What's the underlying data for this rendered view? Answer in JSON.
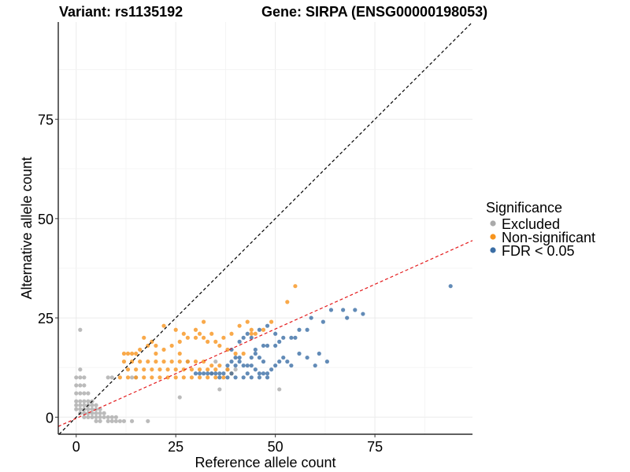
{
  "chart_data": {
    "type": "scatter",
    "title_left": "Variant: rs1135192",
    "title_right": "Gene: SIRPA (ENSG00000198053)",
    "xlabel": "Reference allele count",
    "ylabel": "Alternative allele count",
    "xlim": [
      -4.5,
      99.5
    ],
    "ylim": [
      -4.3,
      99.5
    ],
    "x_ticks": [
      0,
      25,
      50,
      75
    ],
    "y_ticks": [
      0,
      25,
      50,
      75
    ],
    "x_tick_labels": [
      "0",
      "25",
      "50",
      "75"
    ],
    "y_tick_labels": [
      "0",
      "25",
      "50",
      "75"
    ],
    "grid": true,
    "reference_lines": [
      {
        "name": "identity",
        "slope": 1,
        "intercept": 0,
        "color": "#000000",
        "style": "dashed"
      },
      {
        "name": "fit",
        "slope": 0.45,
        "intercept": -0.3,
        "color": "#e41a1c",
        "style": "dashed"
      }
    ],
    "legend": {
      "title": "Significance",
      "position": "right",
      "entries": [
        {
          "label": "Excluded",
          "color": "#aaaaaa"
        },
        {
          "label": "Non-significant",
          "color": "#f7941d"
        },
        {
          "label": "FDR < 0.05",
          "color": "#3b6ea5"
        }
      ]
    },
    "series": [
      {
        "name": "Excluded",
        "color": "#aaaaaa",
        "points": [
          [
            1,
            22
          ],
          [
            1,
            12
          ],
          [
            0,
            10
          ],
          [
            1,
            10
          ],
          [
            2,
            10
          ],
          [
            0,
            8
          ],
          [
            1,
            8
          ],
          [
            2,
            8
          ],
          [
            0,
            6
          ],
          [
            1,
            6
          ],
          [
            2,
            6
          ],
          [
            3,
            6
          ],
          [
            0,
            4
          ],
          [
            1,
            4
          ],
          [
            2,
            4
          ],
          [
            3,
            4
          ],
          [
            4,
            4
          ],
          [
            0,
            3
          ],
          [
            1,
            3
          ],
          [
            2,
            3
          ],
          [
            3,
            3
          ],
          [
            4,
            3
          ],
          [
            5,
            3
          ],
          [
            0,
            2
          ],
          [
            1,
            2
          ],
          [
            2,
            2
          ],
          [
            3,
            2
          ],
          [
            4,
            2
          ],
          [
            5,
            2
          ],
          [
            6,
            2
          ],
          [
            1,
            1
          ],
          [
            2,
            1
          ],
          [
            3,
            1
          ],
          [
            4,
            1
          ],
          [
            5,
            1
          ],
          [
            6,
            1
          ],
          [
            7,
            1
          ],
          [
            2,
            0
          ],
          [
            3,
            0
          ],
          [
            4,
            0
          ],
          [
            5,
            0
          ],
          [
            6,
            0
          ],
          [
            7,
            0
          ],
          [
            8,
            0
          ],
          [
            9,
            0
          ],
          [
            10,
            0
          ],
          [
            5,
            -1
          ],
          [
            6,
            -1
          ],
          [
            8,
            -1
          ],
          [
            9,
            -1
          ],
          [
            10,
            -1
          ],
          [
            11,
            -1
          ],
          [
            12,
            -1
          ],
          [
            14,
            -1
          ],
          [
            18,
            -1
          ],
          [
            26,
            5
          ],
          [
            36,
            7
          ],
          [
            51,
            7
          ],
          [
            8,
            10
          ],
          [
            9,
            10
          ],
          [
            14,
            10
          ],
          [
            15,
            10
          ],
          [
            34,
            11
          ],
          [
            35,
            14
          ],
          [
            38,
            12
          ],
          [
            40,
            12
          ],
          [
            28,
            14
          ]
        ]
      },
      {
        "name": "Non-significant",
        "color": "#f7941d",
        "points": [
          [
            12,
            16
          ],
          [
            13,
            16
          ],
          [
            14,
            16
          ],
          [
            15,
            16
          ],
          [
            16,
            17
          ],
          [
            18,
            18
          ],
          [
            20,
            18
          ],
          [
            12,
            14
          ],
          [
            14,
            14
          ],
          [
            16,
            14
          ],
          [
            18,
            14
          ],
          [
            20,
            14
          ],
          [
            22,
            14
          ],
          [
            24,
            14
          ],
          [
            26,
            14
          ],
          [
            28,
            14
          ],
          [
            30,
            14
          ],
          [
            32,
            14
          ],
          [
            34,
            13
          ],
          [
            36,
            13
          ],
          [
            38,
            12
          ],
          [
            13,
            12
          ],
          [
            15,
            12
          ],
          [
            17,
            12
          ],
          [
            19,
            12
          ],
          [
            21,
            12
          ],
          [
            23,
            12
          ],
          [
            25,
            12
          ],
          [
            27,
            12
          ],
          [
            29,
            12
          ],
          [
            31,
            12
          ],
          [
            33,
            12
          ],
          [
            35,
            12
          ],
          [
            11,
            10
          ],
          [
            13,
            10
          ],
          [
            15,
            10
          ],
          [
            17,
            10
          ],
          [
            19,
            10
          ],
          [
            21,
            10
          ],
          [
            23,
            10
          ],
          [
            25,
            10
          ],
          [
            27,
            10
          ],
          [
            29,
            10
          ],
          [
            31,
            10
          ],
          [
            33,
            10
          ],
          [
            35,
            10
          ],
          [
            37,
            10
          ],
          [
            39,
            11
          ],
          [
            24,
            18
          ],
          [
            26,
            19
          ],
          [
            28,
            20
          ],
          [
            30,
            20
          ],
          [
            32,
            20
          ],
          [
            34,
            21
          ],
          [
            36,
            18
          ],
          [
            22,
            23
          ],
          [
            25,
            22
          ],
          [
            27,
            21
          ],
          [
            31,
            21
          ],
          [
            33,
            19
          ],
          [
            35,
            19
          ],
          [
            37,
            20
          ],
          [
            39,
            21
          ],
          [
            38,
            17
          ],
          [
            40,
            16
          ],
          [
            42,
            16
          ],
          [
            44,
            22
          ],
          [
            47,
            22
          ],
          [
            49,
            24
          ],
          [
            44,
            21
          ],
          [
            45,
            21
          ],
          [
            53,
            29
          ],
          [
            55,
            33
          ],
          [
            41,
            23
          ],
          [
            43,
            24
          ],
          [
            30,
            22
          ],
          [
            32,
            24
          ],
          [
            26,
            16
          ],
          [
            20,
            16
          ],
          [
            17,
            20
          ],
          [
            19,
            19
          ],
          [
            22,
            17
          ]
        ]
      },
      {
        "name": "FDR < 0.05",
        "color": "#3b6ea5",
        "points": [
          [
            94,
            33
          ],
          [
            70,
            27
          ],
          [
            67,
            27
          ],
          [
            64,
            27
          ],
          [
            59,
            25
          ],
          [
            62,
            24
          ],
          [
            68,
            25
          ],
          [
            72,
            26
          ],
          [
            56,
            22
          ],
          [
            58,
            22
          ],
          [
            54,
            20
          ],
          [
            55,
            20
          ],
          [
            52,
            20
          ],
          [
            51,
            19
          ],
          [
            50,
            18
          ],
          [
            47,
            18
          ],
          [
            48,
            18
          ],
          [
            45,
            17
          ],
          [
            45,
            16
          ],
          [
            44,
            15
          ],
          [
            41,
            15
          ],
          [
            40,
            13
          ],
          [
            41,
            14
          ],
          [
            42,
            13
          ],
          [
            43,
            13
          ],
          [
            44,
            13
          ],
          [
            45,
            12
          ],
          [
            46,
            11
          ],
          [
            47,
            11
          ],
          [
            48,
            11
          ],
          [
            49,
            12
          ],
          [
            50,
            13
          ],
          [
            51,
            14
          ],
          [
            52,
            15
          ],
          [
            53,
            14
          ],
          [
            54,
            13
          ],
          [
            56,
            16
          ],
          [
            58,
            15
          ],
          [
            60,
            13
          ],
          [
            61,
            16
          ],
          [
            63,
            14
          ],
          [
            39,
            11
          ],
          [
            37,
            11
          ],
          [
            36,
            11
          ],
          [
            35,
            11
          ],
          [
            34,
            11
          ],
          [
            33,
            11
          ],
          [
            32,
            11
          ],
          [
            31,
            11
          ],
          [
            30,
            11
          ],
          [
            38,
            13
          ],
          [
            39,
            14
          ],
          [
            40,
            15
          ],
          [
            39,
            17
          ],
          [
            41,
            19
          ],
          [
            42,
            20
          ],
          [
            43,
            21
          ],
          [
            44,
            20
          ],
          [
            46,
            22
          ],
          [
            48,
            23
          ],
          [
            50,
            21
          ],
          [
            47,
            14
          ],
          [
            46,
            15
          ],
          [
            38,
            10
          ],
          [
            36,
            10
          ],
          [
            40,
            10
          ],
          [
            42,
            10
          ],
          [
            44,
            10
          ],
          [
            46,
            10
          ],
          [
            48,
            10
          ],
          [
            43,
            11
          ]
        ]
      }
    ]
  }
}
